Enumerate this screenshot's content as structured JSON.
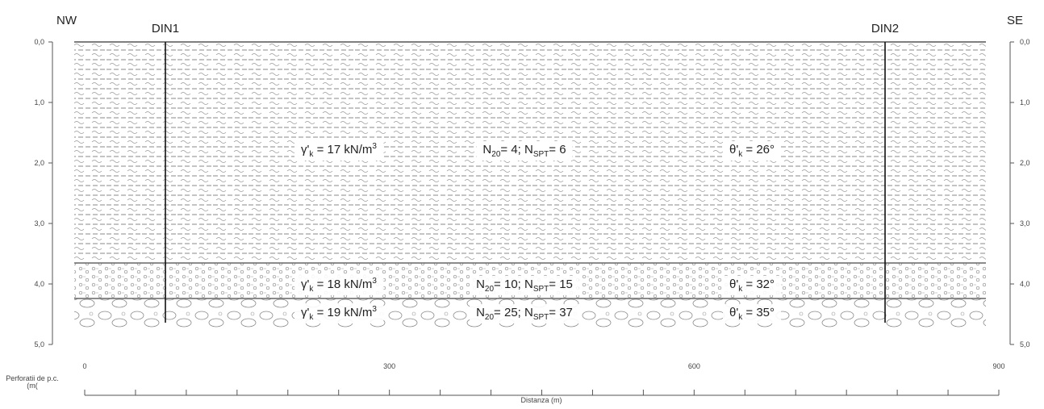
{
  "orientation": {
    "left": "NW",
    "right": "SE"
  },
  "boreholes": [
    {
      "label": "DIN1"
    },
    {
      "label": "DIN2"
    }
  ],
  "depth_axis": {
    "ticks": [
      "0,0",
      "1,0",
      "2,0",
      "3,0",
      "4,0",
      "5,0"
    ],
    "label": [
      "Perforatii de p.c.",
      "(m("
    ]
  },
  "distance_axis": {
    "ticks": [
      "0",
      "300",
      "600",
      "900"
    ],
    "label": "Distanza (m)"
  },
  "layers": [
    {
      "unit_weight": [
        "γ'",
        "k",
        " = 17 kN/m",
        "3"
      ],
      "penetration": [
        "N",
        "20",
        "= 4; N",
        "SPT",
        "= 6"
      ],
      "friction_angle": [
        "θ'",
        "k",
        " = 26°"
      ]
    },
    {
      "unit_weight": [
        "γ'",
        "k",
        " = 18 kN/m",
        "3"
      ],
      "penetration": [
        "N",
        "20",
        "= 10; N",
        "SPT",
        "= 15"
      ],
      "friction_angle": [
        "θ'",
        "k",
        " = 32°"
      ]
    },
    {
      "unit_weight": [
        "γ'",
        "k",
        " = 19 kN/m",
        "3"
      ],
      "penetration": [
        "N",
        "20",
        "= 25; N",
        "SPT",
        "= 37"
      ],
      "friction_angle": [
        "θ'",
        "k",
        " = 35°"
      ]
    }
  ]
}
